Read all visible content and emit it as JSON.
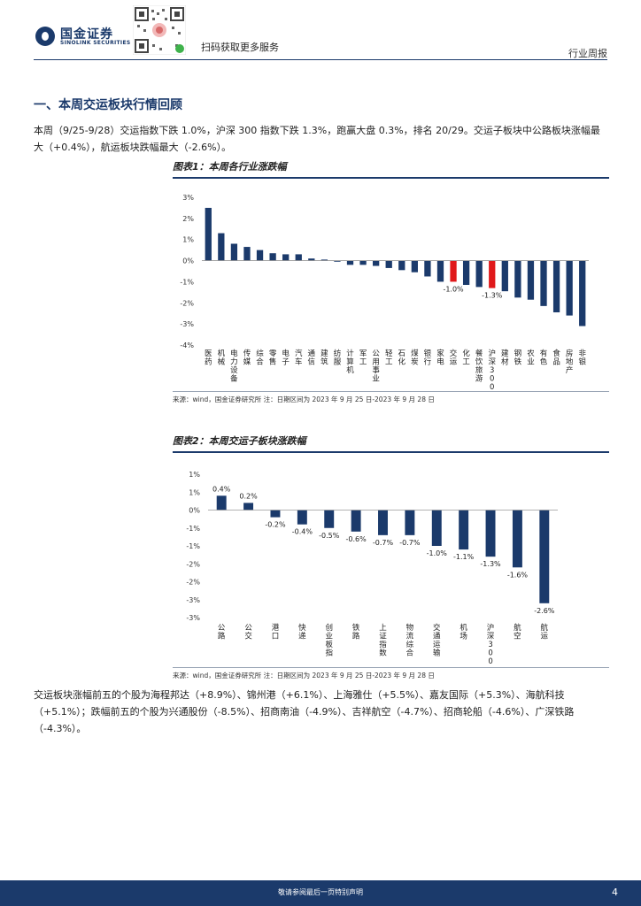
{
  "header": {
    "company_cn": "国金证券",
    "company_en": "SINOLINK SECURITIES",
    "scan_text": "扫码获取更多服务",
    "report_type": "行业周报"
  },
  "section": {
    "title": "一、本周交运板块行情回顾",
    "para1": "本周（9/25-9/28）交运指数下跌 1.0%，沪深 300 指数下跌 1.3%，跑赢大盘 0.3%，排名 20/29。交运子板块中公路板块涨幅最大（+0.4%），航运板块跌幅最大（-2.6%）。",
    "para2": "交运板块涨幅前五的个股为海程邦达（+8.9%）、锦州港（+6.1%）、上海雅仕（+5.5%）、嘉友国际（+5.3%）、海航科技（+5.1%）；跌幅前五的个股为兴通股份（-8.5%）、招商南油（-4.9%）、吉祥航空（-4.7%）、招商轮船（-4.6%）、广深铁路（-4.3%）。"
  },
  "figures": {
    "fig1_title": "图表1：本周各行业涨跌幅",
    "fig2_title": "图表2：本周交运子板块涨跌幅",
    "source1": "来源：wind，国金证券研究所   注：日期区间为 2023 年 9 月 25 日-2023 年 9 月 28 日",
    "source2": "来源：wind，国金证券研究所   注：日期区间为 2023 年 9 月 25 日-2023 年 9 月 28 日"
  },
  "footer": {
    "disclaimer": "敬请参阅最后一页特别声明",
    "page": "4"
  },
  "colors": {
    "bar": "#1b3a6b",
    "highlight": "#e0191b"
  },
  "chart_data": [
    {
      "type": "bar",
      "title": "图表1：本周各行业涨跌幅",
      "categories": [
        "医药",
        "机械",
        "电力设备",
        "传媒",
        "综合",
        "零售",
        "电子",
        "汽车",
        "通信",
        "建筑",
        "纺服",
        "计算机",
        "军工",
        "公用事业",
        "轻工",
        "石化",
        "煤炭",
        "银行",
        "家电",
        "交运",
        "化工",
        "餐饮旅游",
        "沪深300",
        "建材",
        "钢铁",
        "农业",
        "有色",
        "食品",
        "房地产",
        "非银"
      ],
      "values": [
        2.5,
        1.3,
        0.8,
        0.65,
        0.5,
        0.35,
        0.3,
        0.3,
        0.1,
        0.05,
        -0.05,
        -0.2,
        -0.2,
        -0.25,
        -0.35,
        -0.45,
        -0.55,
        -0.75,
        -1.0,
        -1.0,
        -1.15,
        -1.25,
        -1.3,
        -1.45,
        -1.75,
        -1.85,
        -2.15,
        -2.45,
        -2.6,
        -3.1
      ],
      "highlight": [
        "交运",
        "沪深300"
      ],
      "data_labels": [
        {
          "category": "交运",
          "text": "-1.0%"
        },
        {
          "category": "沪深300",
          "text": "-1.3%"
        }
      ],
      "yticks": [
        "3%",
        "2%",
        "1%",
        "0%",
        "-1%",
        "-2%",
        "-3%",
        "-4%"
      ],
      "ylim": [
        -4,
        3
      ],
      "grid": false,
      "legend": "none"
    },
    {
      "type": "bar",
      "title": "图表2：本周交运子板块涨跌幅",
      "categories": [
        "公路",
        "公交",
        "港口",
        "快递",
        "创业板指",
        "铁路",
        "上证指数",
        "物流综合",
        "交通运输",
        "机场",
        "沪深300",
        "航空",
        "航运"
      ],
      "values": [
        0.4,
        0.2,
        -0.2,
        -0.4,
        -0.5,
        -0.6,
        -0.7,
        -0.7,
        -1.0,
        -1.1,
        -1.3,
        -1.6,
        -2.6
      ],
      "labels": [
        "0.4%",
        "0.2%",
        "-0.2%",
        "-0.4%",
        "-0.5%",
        "-0.6%",
        "-0.7%",
        "-0.7%",
        "-1.0%",
        "-1.1%",
        "-1.3%",
        "-1.6%",
        "-2.6%"
      ],
      "yticks": [
        "1%",
        "1%",
        "0%",
        "-1%",
        "-1%",
        "-2%",
        "-2%",
        "-3%",
        "-3%"
      ],
      "ylim": [
        -3,
        1
      ],
      "grid": false,
      "legend": "none"
    }
  ]
}
